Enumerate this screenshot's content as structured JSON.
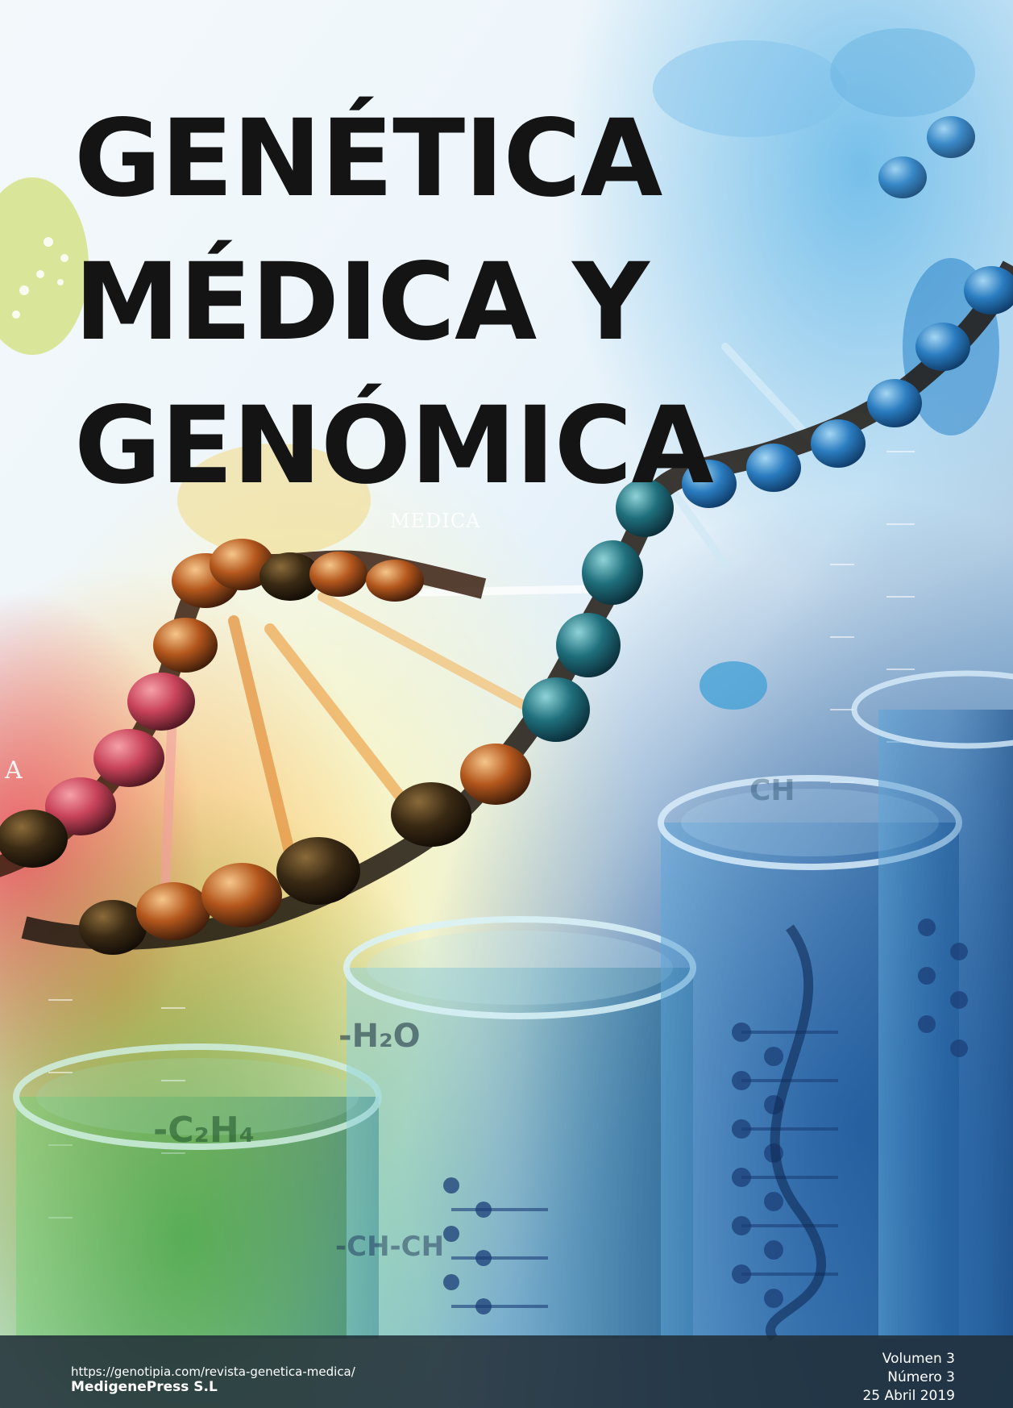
{
  "journal": {
    "title_lines": [
      "GENÉTICA",
      "MÉDICA Y",
      "GENÓMICA"
    ]
  },
  "background_text": {
    "medica": "MEDICA",
    "a": "A",
    "h2o": "-H₂O",
    "c2h4": "-C₂H₄",
    "chch": "-CH-CH",
    "ch": "CH"
  },
  "footer": {
    "url": "https://genotipia.com/revista-genetica-medica/",
    "publisher": "MedigenePress S.L",
    "volume": "Volumen 3",
    "issue": "Número 3",
    "date": "25 Abril 2019"
  },
  "colors": {
    "title": "#141414",
    "footer_bar": "#202d37",
    "dna_dark": "#2a1c12",
    "dna_orange": "#e0741e",
    "dna_teal": "#1d6f8c",
    "tube_blue": "#2f77b8",
    "tube_green": "#3a9a55"
  }
}
